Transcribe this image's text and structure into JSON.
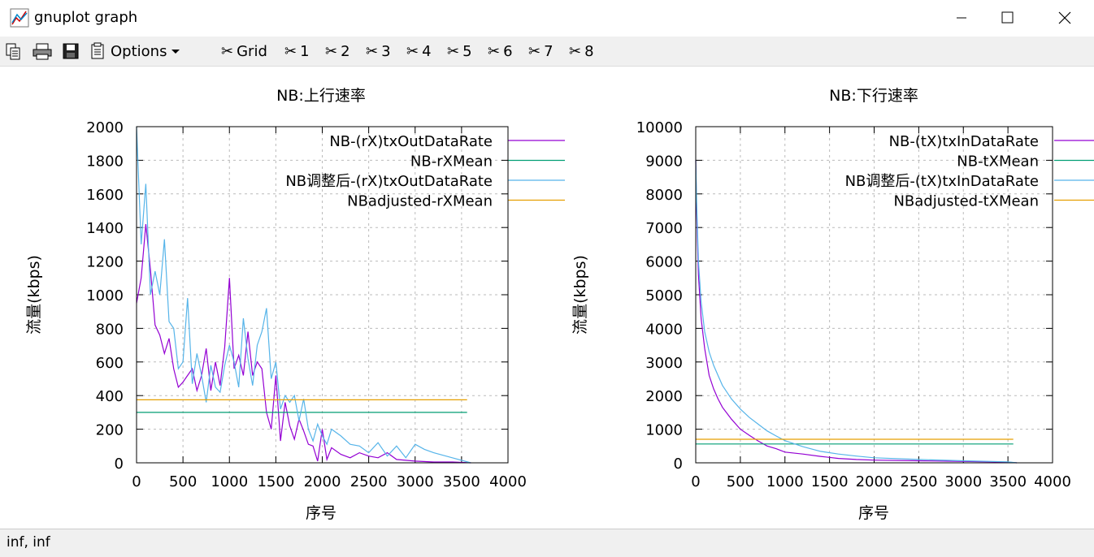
{
  "window": {
    "title": "gnuplot graph"
  },
  "toolbar": {
    "options_label": "Options",
    "grid_label": "Grid",
    "series_labels": [
      "1",
      "2",
      "3",
      "4",
      "5",
      "6",
      "7",
      "8"
    ]
  },
  "status": {
    "text": "inf,  inf"
  },
  "colors": {
    "purple": "#9400d3",
    "teal": "#009e73",
    "lightblue": "#56b4e9",
    "orange": "#e69f00",
    "grid": "#bbbbbb"
  },
  "chart_data": [
    {
      "type": "line",
      "title": "NB:上行速率",
      "xlabel": "序号",
      "ylabel": "流量(kbps)",
      "xlim": [
        0,
        4000
      ],
      "ylim": [
        0,
        2000
      ],
      "xticks": [
        0,
        500,
        1000,
        1500,
        2000,
        2500,
        3000,
        3500,
        4000
      ],
      "yticks": [
        0,
        200,
        400,
        600,
        800,
        1000,
        1200,
        1400,
        1600,
        1800,
        2000
      ],
      "grid": true,
      "legend_position": "top-right",
      "series": [
        {
          "name": "NB-(rX)txOutDataRate",
          "color": "#9400d3",
          "x": [
            0,
            50,
            100,
            150,
            200,
            250,
            300,
            350,
            400,
            450,
            500,
            550,
            600,
            650,
            700,
            750,
            800,
            850,
            900,
            950,
            1000,
            1050,
            1100,
            1150,
            1200,
            1250,
            1300,
            1350,
            1400,
            1450,
            1500,
            1550,
            1600,
            1650,
            1700,
            1750,
            1800,
            1850,
            1900,
            1950,
            2000,
            2050,
            2100,
            2200,
            2300,
            2400,
            2500,
            2600,
            2700,
            2800,
            2900,
            3000,
            3200,
            3400,
            3600
          ],
          "y": [
            950,
            1100,
            1420,
            1150,
            820,
            760,
            650,
            740,
            560,
            450,
            480,
            520,
            560,
            430,
            520,
            680,
            430,
            600,
            460,
            690,
            1100,
            560,
            640,
            520,
            780,
            520,
            600,
            560,
            300,
            200,
            520,
            130,
            360,
            220,
            140,
            260,
            190,
            110,
            100,
            10,
            200,
            20,
            90,
            50,
            30,
            60,
            40,
            30,
            60,
            20,
            15,
            10,
            5,
            5,
            0
          ]
        },
        {
          "name": "NB-rXMean",
          "color": "#009e73",
          "x": [
            0,
            3560
          ],
          "y": [
            300,
            300
          ]
        },
        {
          "name": "NB调整后-(rX)txOutDataRate",
          "color": "#56b4e9",
          "x": [
            0,
            50,
            100,
            150,
            200,
            250,
            300,
            350,
            400,
            450,
            500,
            550,
            600,
            650,
            700,
            750,
            800,
            850,
            900,
            950,
            1000,
            1050,
            1100,
            1150,
            1200,
            1250,
            1300,
            1350,
            1400,
            1450,
            1500,
            1550,
            1600,
            1650,
            1700,
            1750,
            1800,
            1850,
            1900,
            1950,
            2000,
            2050,
            2100,
            2200,
            2300,
            2400,
            2500,
            2600,
            2700,
            2800,
            2900,
            3000,
            3100,
            3200,
            3400,
            3600
          ],
          "y": [
            2000,
            1300,
            1660,
            1000,
            1140,
            1000,
            1330,
            840,
            800,
            560,
            600,
            980,
            470,
            650,
            520,
            360,
            580,
            450,
            420,
            580,
            700,
            600,
            450,
            860,
            620,
            460,
            700,
            780,
            920,
            500,
            600,
            320,
            400,
            360,
            400,
            250,
            380,
            200,
            130,
            230,
            160,
            110,
            200,
            160,
            110,
            100,
            60,
            120,
            40,
            100,
            30,
            110,
            80,
            60,
            30,
            0
          ]
        },
        {
          "name": "NBadjusted-rXMean",
          "color": "#e69f00",
          "x": [
            0,
            3560
          ],
          "y": [
            375,
            375
          ]
        }
      ]
    },
    {
      "type": "line",
      "title": "NB:下行速率",
      "xlabel": "序号",
      "ylabel": "流量(kbps)",
      "xlim": [
        0,
        4000
      ],
      "ylim": [
        0,
        10000
      ],
      "xticks": [
        0,
        500,
        1000,
        1500,
        2000,
        2500,
        3000,
        3500,
        4000
      ],
      "yticks": [
        0,
        1000,
        2000,
        3000,
        4000,
        5000,
        6000,
        7000,
        8000,
        9000,
        10000
      ],
      "grid": true,
      "legend_position": "top-right",
      "series": [
        {
          "name": "NB-(tX)txInDataRate",
          "color": "#9400d3",
          "x": [
            0,
            10,
            30,
            60,
            100,
            150,
            200,
            250,
            300,
            400,
            500,
            600,
            700,
            800,
            900,
            1000,
            1200,
            1400,
            1600,
            1800,
            2000,
            2500,
            3000,
            3500,
            3600
          ],
          "y": [
            9000,
            7500,
            5600,
            4300,
            3400,
            2600,
            2200,
            1900,
            1650,
            1300,
            1000,
            820,
            650,
            500,
            420,
            320,
            260,
            190,
            130,
            100,
            80,
            60,
            40,
            20,
            0
          ]
        },
        {
          "name": "NB-tXMean",
          "color": "#009e73",
          "x": [
            0,
            3560
          ],
          "y": [
            560,
            560
          ]
        },
        {
          "name": "NB调整后-(tX)txInDataRate",
          "color": "#56b4e9",
          "x": [
            0,
            10,
            30,
            60,
            100,
            150,
            200,
            250,
            300,
            400,
            500,
            600,
            700,
            800,
            900,
            1000,
            1200,
            1400,
            1600,
            1800,
            2000,
            2500,
            3000,
            3500,
            3600
          ],
          "y": [
            9000,
            7800,
            6000,
            4800,
            3900,
            3300,
            2900,
            2600,
            2300,
            1900,
            1600,
            1350,
            1150,
            950,
            800,
            660,
            480,
            340,
            260,
            200,
            150,
            100,
            60,
            30,
            0
          ]
        },
        {
          "name": "NBadjusted-tXMean",
          "color": "#e69f00",
          "x": [
            0,
            3560
          ],
          "y": [
            700,
            700
          ]
        }
      ]
    }
  ]
}
